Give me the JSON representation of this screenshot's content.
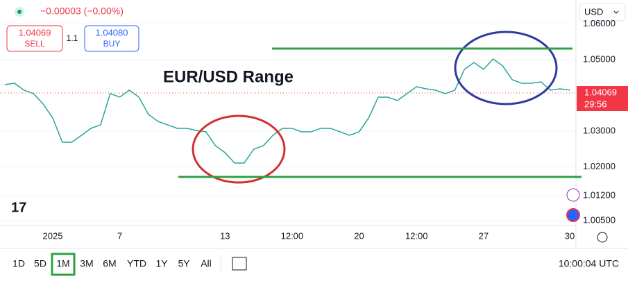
{
  "ui": {
    "change": "−0.00003 (−0.00%)",
    "sell_label": "SELL",
    "spread": "1.1",
    "buy_price": "1.04080",
    "buy_label": "BUY",
    "currency": "USD",
    "countdown": "29:56",
    "logo": "17",
    "timeframes": [
      "1D",
      "5D",
      "1M",
      "3M",
      "6M",
      "YTD",
      "1Y",
      "5Y",
      "All"
    ],
    "active_timeframe": "1M",
    "clock": "10:00:04 UTC"
  },
  "chart_data": {
    "type": "line",
    "title": "EUR/USD Range",
    "categories": [
      null,
      null,
      null,
      null,
      null,
      "2025",
      null,
      null,
      null,
      null,
      null,
      null,
      "7",
      null,
      null,
      null,
      null,
      null,
      null,
      null,
      null,
      null,
      null,
      "13",
      null,
      null,
      null,
      null,
      null,
      null,
      "12:00",
      null,
      null,
      null,
      null,
      null,
      null,
      "20",
      null,
      null,
      null,
      null,
      null,
      "12:00",
      null,
      null,
      null,
      null,
      null,
      null,
      "27",
      null,
      null,
      null,
      null,
      null,
      null,
      null,
      null,
      "30"
    ],
    "series": [
      {
        "name": "EUR/USD",
        "color": "#26a69a",
        "values": [
          1.04302,
          1.04341,
          1.04147,
          1.0405,
          1.03759,
          1.03371,
          1.02692,
          1.02692,
          1.02886,
          1.0308,
          1.03177,
          1.0405,
          1.03953,
          1.04147,
          1.03953,
          1.03468,
          1.03274,
          1.03177,
          1.0308,
          1.0308,
          1.03022,
          1.02983,
          1.02595,
          1.02401,
          1.0211,
          1.0211,
          1.02498,
          1.02595,
          1.02886,
          1.0308,
          1.0308,
          1.02983,
          1.02983,
          1.0308,
          1.0308,
          1.02983,
          1.02886,
          1.02983,
          1.03371,
          1.03953,
          1.03953,
          1.03856,
          1.0405,
          1.04244,
          1.04186,
          1.04147,
          1.0405,
          1.04147,
          1.04729,
          1.04922,
          1.04729,
          1.05019,
          1.04825,
          1.04438,
          1.04341,
          1.04341,
          1.04379,
          1.04147,
          1.04186,
          1.04147
        ]
      }
    ],
    "ylim": [
      1.00364,
      1.06668
    ],
    "yticks": [
      {
        "value": 1.06,
        "label": "1.06000"
      },
      {
        "value": 1.05,
        "label": "1.05000"
      },
      {
        "value": 1.03,
        "label": "1.03000"
      },
      {
        "value": 1.02,
        "label": "1.02000"
      },
      {
        "value": 1.012,
        "label": "1.01200"
      },
      {
        "value": 1.005,
        "label": "1.00500"
      }
    ],
    "last_price": 1.04069,
    "levels": [
      {
        "value": 1.0531,
        "color": "#2ea043"
      },
      {
        "value": 1.01722,
        "color": "#2ea043"
      }
    ],
    "grid": true
  }
}
